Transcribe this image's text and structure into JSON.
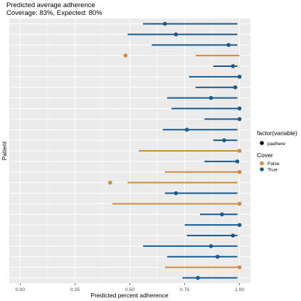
{
  "chart_data": {
    "type": "scatter",
    "title": "Predicted average adherence",
    "subtitle": "Coverage: 83%, Expected: 80%",
    "xlabel": "Predicted percent adherence",
    "ylabel": "Patient",
    "xlim": [
      -0.05,
      1.05
    ],
    "xticks": [
      0.0,
      0.25,
      0.5,
      0.75,
      1.0
    ],
    "xtick_labels": [
      "0.00",
      "0.25",
      "0.50",
      "0.75",
      "1.00"
    ],
    "grid": true,
    "legend_placement": "right",
    "colors": {
      "True": "#1a5a8c",
      "False": "#d08c3c",
      "panel": "#ebebeb",
      "grid": "#ffffff"
    },
    "legend": {
      "shape_title": "factor(variable)",
      "shape_items": [
        "padhere"
      ],
      "color_title": "Cover",
      "color_items": [
        "False",
        "True"
      ]
    },
    "intervals": [
      {
        "point": 0.66,
        "lower": 0.56,
        "upper": 0.99,
        "cover": "True"
      },
      {
        "point": 0.71,
        "lower": 0.49,
        "upper": 0.99,
        "cover": "True"
      },
      {
        "point": 0.95,
        "lower": 0.6,
        "upper": 0.99,
        "cover": "True"
      },
      {
        "point": 0.48,
        "lower": 0.8,
        "upper": 1.0,
        "cover": "False"
      },
      {
        "point": 0.97,
        "lower": 0.88,
        "upper": 0.99,
        "cover": "True"
      },
      {
        "point": 1.0,
        "lower": 0.77,
        "upper": 1.0,
        "cover": "True"
      },
      {
        "point": 0.98,
        "lower": 0.8,
        "upper": 0.99,
        "cover": "True"
      },
      {
        "point": 0.87,
        "lower": 0.67,
        "upper": 0.99,
        "cover": "True"
      },
      {
        "point": 1.0,
        "lower": 0.69,
        "upper": 1.0,
        "cover": "True"
      },
      {
        "point": 1.0,
        "lower": 0.84,
        "upper": 1.0,
        "cover": "True"
      },
      {
        "point": 0.76,
        "lower": 0.65,
        "upper": 0.99,
        "cover": "True"
      },
      {
        "point": 0.93,
        "lower": 0.88,
        "upper": 0.99,
        "cover": "True"
      },
      {
        "point": 1.0,
        "lower": 0.54,
        "upper": 1.0,
        "cover": "False"
      },
      {
        "point": 0.99,
        "lower": 0.84,
        "upper": 0.99,
        "cover": "True"
      },
      {
        "point": 1.0,
        "lower": 0.66,
        "upper": 1.0,
        "cover": "False"
      },
      {
        "point": 0.41,
        "lower": 0.49,
        "upper": 0.99,
        "cover": "False"
      },
      {
        "point": 0.71,
        "lower": 0.66,
        "upper": 0.99,
        "cover": "True"
      },
      {
        "point": 1.0,
        "lower": 0.42,
        "upper": 1.0,
        "cover": "False"
      },
      {
        "point": 0.92,
        "lower": 0.82,
        "upper": 0.99,
        "cover": "True"
      },
      {
        "point": 1.0,
        "lower": 0.75,
        "upper": 1.0,
        "cover": "True"
      },
      {
        "point": 0.97,
        "lower": 0.76,
        "upper": 0.99,
        "cover": "True"
      },
      {
        "point": 0.87,
        "lower": 0.56,
        "upper": 0.99,
        "cover": "True"
      },
      {
        "point": 0.9,
        "lower": 0.67,
        "upper": 0.99,
        "cover": "True"
      },
      {
        "point": 1.0,
        "lower": 0.66,
        "upper": 1.0,
        "cover": "False"
      },
      {
        "point": 0.81,
        "lower": 0.74,
        "upper": 0.99,
        "cover": "True"
      }
    ]
  }
}
